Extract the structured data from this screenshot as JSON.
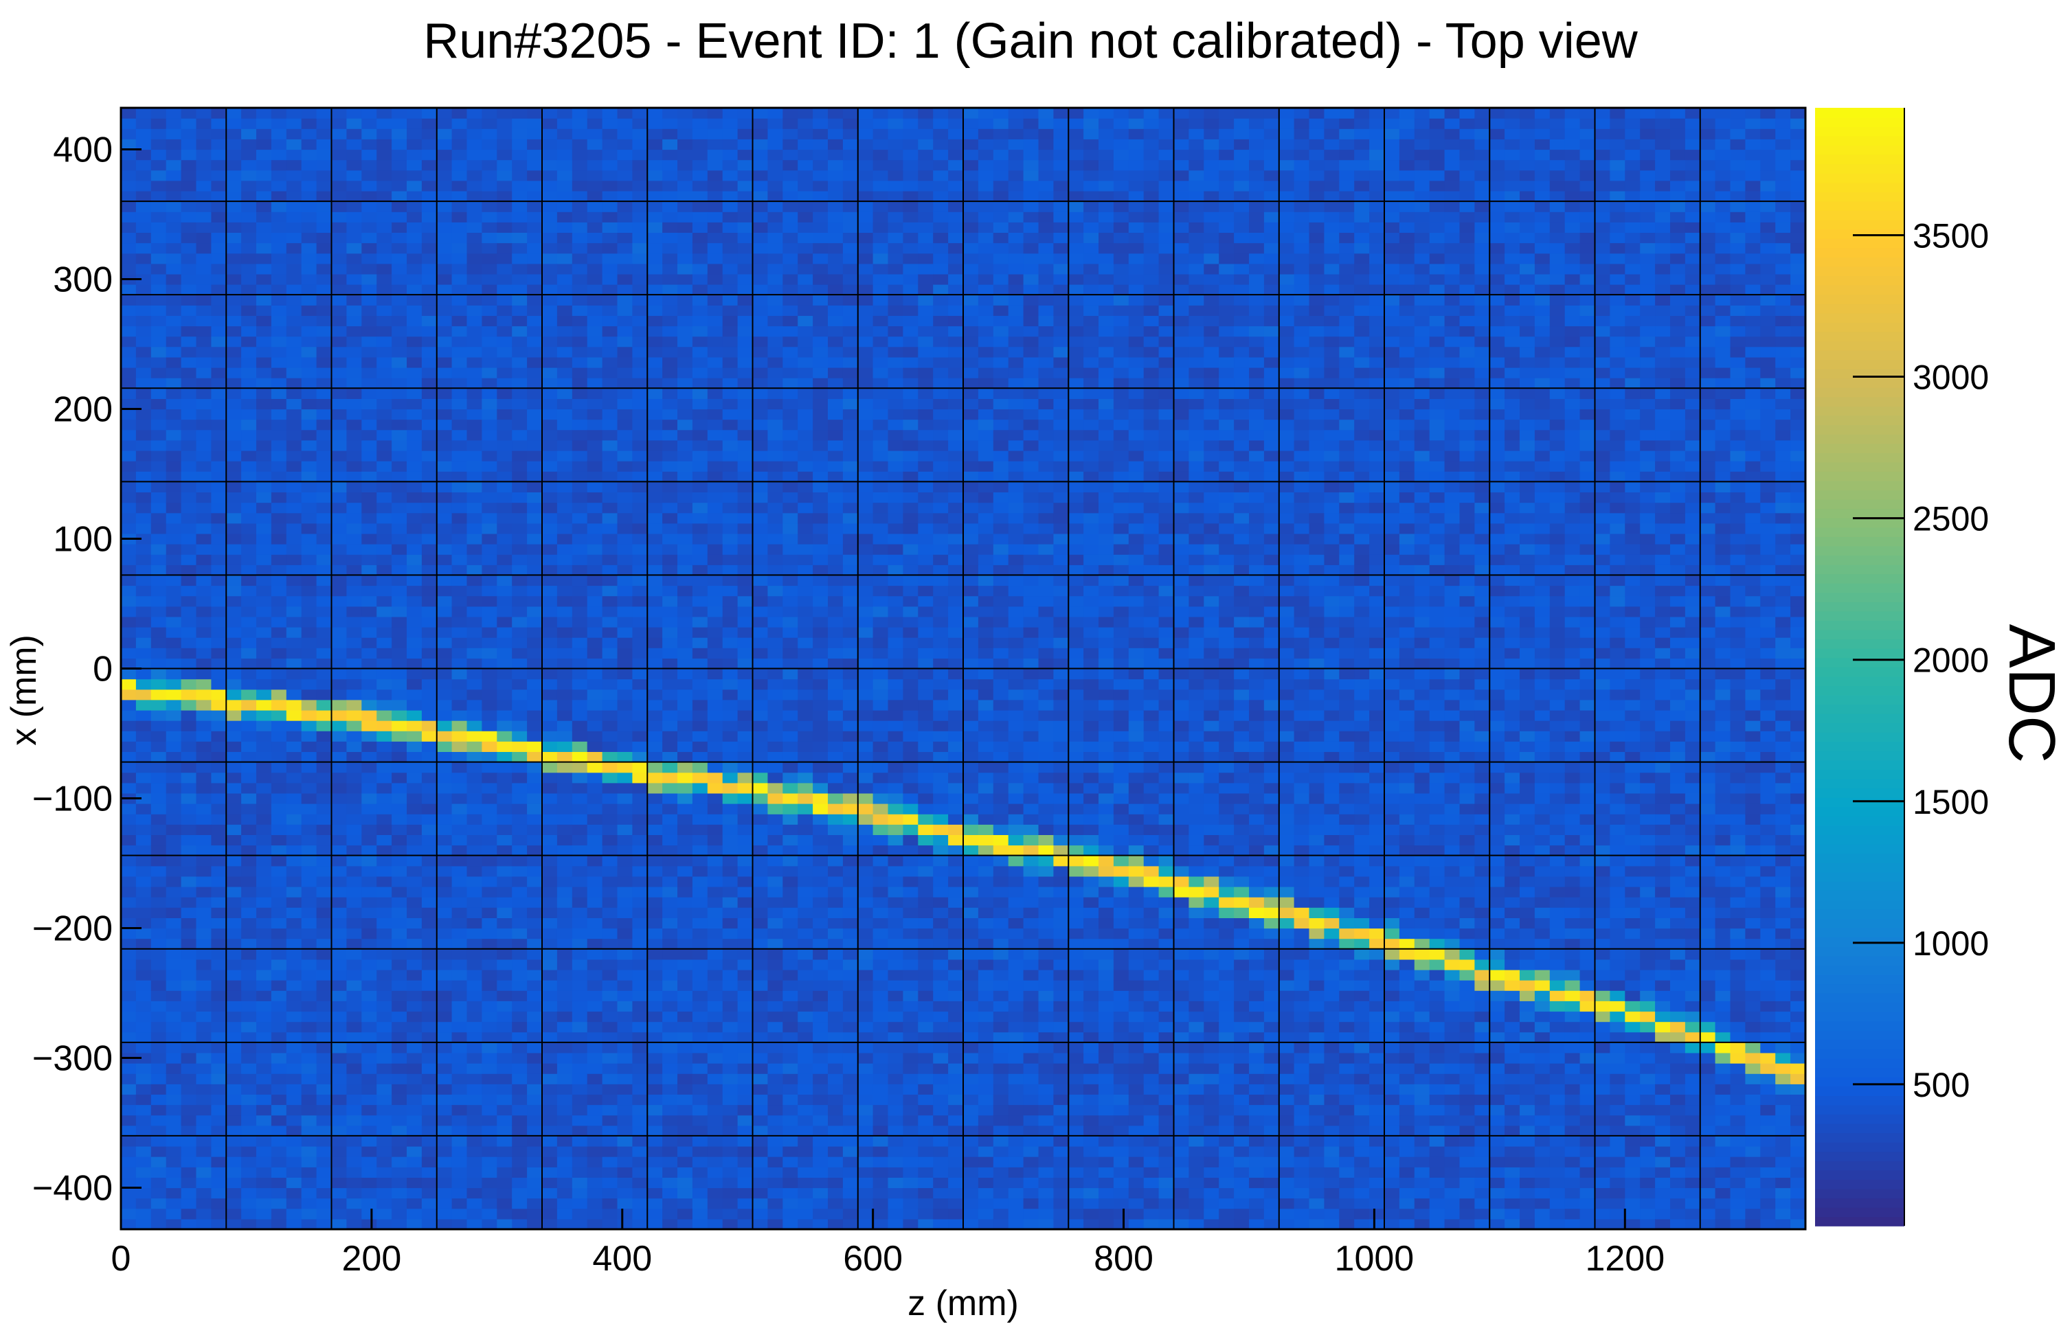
{
  "chart_data": {
    "type": "heatmap",
    "title": "Run#3205 - Event ID: 1 (Gain not calibrated) - Top view",
    "xlabel": "z (mm)",
    "ylabel": "x (mm)",
    "zlabel": "ADC",
    "xlim": [
      0,
      1344
    ],
    "ylim": [
      -432,
      432
    ],
    "zlim": [
      0,
      3950
    ],
    "x_ticks": [
      0,
      200,
      400,
      600,
      800,
      1000,
      1200
    ],
    "x_tick_labels": [
      "0",
      "200",
      "400",
      "600",
      "800",
      "1000",
      "1200"
    ],
    "y_ticks": [
      400,
      300,
      200,
      100,
      0,
      -100,
      -200,
      -300,
      -400
    ],
    "y_tick_labels": [
      "400",
      "300",
      "200",
      "100",
      "0",
      "−100",
      "−200",
      "−300",
      "−400"
    ],
    "z_ticks": [
      500,
      1000,
      1500,
      2000,
      2500,
      3000,
      3500
    ],
    "z_tick_labels": [
      "500",
      "1000",
      "1500",
      "2000",
      "2500",
      "3000",
      "3500"
    ],
    "background_level": 380,
    "module_grid": {
      "z_boundaries": [
        84,
        168,
        252,
        336,
        420,
        504,
        588,
        672,
        756,
        840,
        924,
        1008,
        1092,
        1176,
        1260
      ],
      "x_boundaries": [
        -360,
        -288,
        -216,
        -144,
        -72,
        0,
        72,
        144,
        216,
        288,
        360
      ]
    },
    "track": {
      "description_points": [
        {
          "z": 0,
          "x": -15
        },
        {
          "z": 100,
          "x": -27
        },
        {
          "z": 200,
          "x": -40
        },
        {
          "z": 300,
          "x": -58
        },
        {
          "z": 400,
          "x": -77
        },
        {
          "z": 500,
          "x": -93
        },
        {
          "z": 600,
          "x": -112
        },
        {
          "z": 700,
          "x": -135
        },
        {
          "z": 800,
          "x": -155
        },
        {
          "z": 900,
          "x": -182
        },
        {
          "z": 1000,
          "x": -207
        },
        {
          "z": 1100,
          "x": -238
        },
        {
          "z": 1200,
          "x": -263
        },
        {
          "z": 1344,
          "x": -315
        }
      ],
      "peak_adc": 3900
    },
    "colormap": "parula",
    "colors": [
      "#352a87",
      "#0f5cdd",
      "#1481d6",
      "#06a4ca",
      "#2eb7a4",
      "#87bf77",
      "#d1bb59",
      "#fec832",
      "#f9fb0e"
    ]
  }
}
